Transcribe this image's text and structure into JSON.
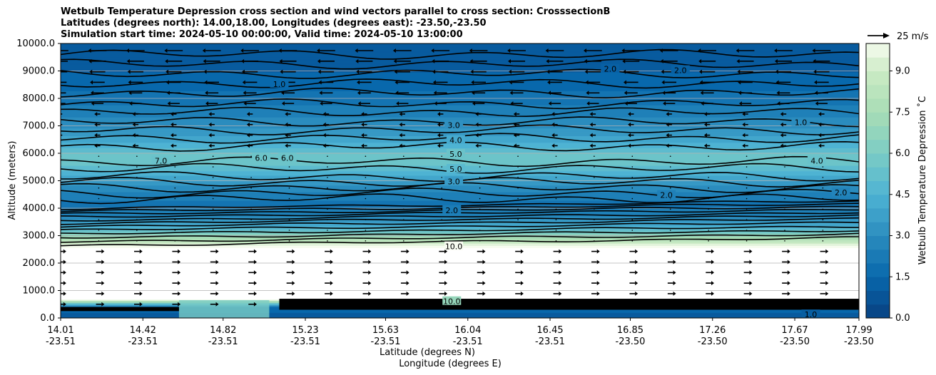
{
  "chart_data": {
    "type": "heatmap",
    "title_lines": [
      "Wetbulb Temperature Depression cross section and wind vectors parallel to cross section: CrosssectionB",
      "Latitudes (degrees north): 14.00,18.00, Longitudes (degrees east): -23.50,-23.50",
      "Simulation start time: 2024-05-10 00:00:00, Valid time: 2024-05-10 13:00:00"
    ],
    "ylabel": "Altitude (meters)",
    "xlabel": "Latitude (degrees N)",
    "xlabel2": "Longitude (degrees E)",
    "ylim": [
      0,
      10000
    ],
    "y_ticks": [
      0,
      1000,
      2000,
      3000,
      4000,
      5000,
      6000,
      7000,
      8000,
      9000,
      10000
    ],
    "y_tick_labels": [
      "0.0",
      "1000.0",
      "2000.0",
      "3000.0",
      "4000.0",
      "5000.0",
      "6000.0",
      "7000.0",
      "8000.0",
      "9000.0",
      "10000.0"
    ],
    "xlim": [
      14.01,
      17.99
    ],
    "x_ticks": [
      {
        "lat": "14.01",
        "lon": "-23.51"
      },
      {
        "lat": "14.42",
        "lon": "-23.51"
      },
      {
        "lat": "14.82",
        "lon": "-23.51"
      },
      {
        "lat": "15.23",
        "lon": "-23.51"
      },
      {
        "lat": "15.63",
        "lon": "-23.51"
      },
      {
        "lat": "16.04",
        "lon": "-23.51"
      },
      {
        "lat": "16.45",
        "lon": "-23.51"
      },
      {
        "lat": "16.85",
        "lon": "-23.50"
      },
      {
        "lat": "17.26",
        "lon": "-23.50"
      },
      {
        "lat": "17.67",
        "lon": "-23.50"
      },
      {
        "lat": "17.99",
        "lon": "-23.50"
      }
    ],
    "colorbar": {
      "label": "Wetbulb Temperature Depression ˚C",
      "range": [
        0,
        10
      ],
      "ticks": [
        "0.0",
        "1.5",
        "3.0",
        "4.5",
        "6.0",
        "7.5",
        "9.0"
      ],
      "colormap": "GnBu_r"
    },
    "wind_key": "25 m/s",
    "profile": [
      {
        "z": 0,
        "v": 1.0
      },
      {
        "z": 400,
        "v": 1.5
      },
      {
        "z": 700,
        "v": 10.5
      },
      {
        "z": 2500,
        "v": 10.5
      },
      {
        "z": 2650,
        "v": 9.8
      },
      {
        "z": 2850,
        "v": 8.0
      },
      {
        "z": 3100,
        "v": 6.0
      },
      {
        "z": 3400,
        "v": 4.0
      },
      {
        "z": 3800,
        "v": 2.4
      },
      {
        "z": 4200,
        "v": 2.1
      },
      {
        "z": 4700,
        "v": 2.9
      },
      {
        "z": 5100,
        "v": 4.0
      },
      {
        "z": 5500,
        "v": 5.2
      },
      {
        "z": 5900,
        "v": 5.6
      },
      {
        "z": 6300,
        "v": 4.5
      },
      {
        "z": 6700,
        "v": 3.6
      },
      {
        "z": 7100,
        "v": 3.0
      },
      {
        "z": 7600,
        "v": 2.4
      },
      {
        "z": 8200,
        "v": 1.8
      },
      {
        "z": 8800,
        "v": 1.3
      },
      {
        "z": 9400,
        "v": 1.1
      },
      {
        "z": 10000,
        "v": 1.0
      }
    ],
    "contour_labels": [
      {
        "text": "1.0",
        "lat": 15.1,
        "z": 8500
      },
      {
        "text": "2.0",
        "lat": 16.75,
        "z": 9050
      },
      {
        "text": "2.0",
        "lat": 17.1,
        "z": 9000
      },
      {
        "text": "1.0",
        "lat": 17.7,
        "z": 7100
      },
      {
        "text": "3.0",
        "lat": 15.97,
        "z": 7000
      },
      {
        "text": "4.0",
        "lat": 15.98,
        "z": 6450
      },
      {
        "text": "5.0",
        "lat": 15.98,
        "z": 5950
      },
      {
        "text": "5.0",
        "lat": 15.98,
        "z": 5400
      },
      {
        "text": "7.0",
        "lat": 14.51,
        "z": 5700
      },
      {
        "text": "6.0",
        "lat": 15.01,
        "z": 5800
      },
      {
        "text": "6.0",
        "lat": 15.14,
        "z": 5800
      },
      {
        "text": "4.0",
        "lat": 17.78,
        "z": 5700
      },
      {
        "text": "3.0",
        "lat": 15.97,
        "z": 4950
      },
      {
        "text": "2.0",
        "lat": 17.03,
        "z": 4450
      },
      {
        "text": "2.0",
        "lat": 17.9,
        "z": 4550
      },
      {
        "text": "2.0",
        "lat": 15.96,
        "z": 3900
      },
      {
        "text": "10.0",
        "lat": 15.97,
        "z": 2580
      },
      {
        "text": "10.0",
        "lat": 15.96,
        "z": 580
      },
      {
        "text": "1.0",
        "lat": 17.75,
        "z": 100
      }
    ]
  }
}
